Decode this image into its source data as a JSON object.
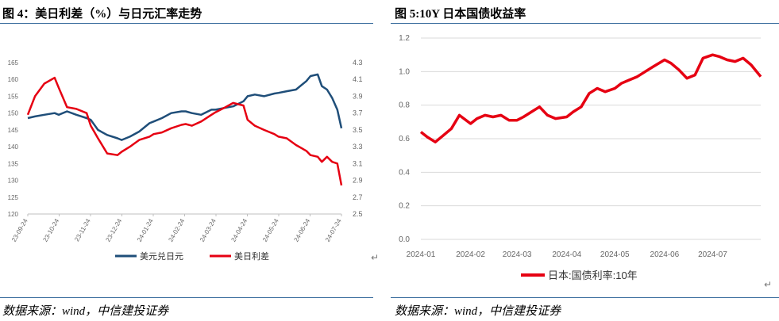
{
  "left": {
    "title": "图 4：美日利差（%）与日元汇率走势",
    "source": "数据来源：wind，中信建投证券",
    "chart_data": {
      "type": "line",
      "x_ticks": [
        "23-09-24",
        "23-10-24",
        "23-11-24",
        "23-12-24",
        "24-01-24",
        "24-02-24",
        "24-03-24",
        "24-04-24",
        "24-05-24",
        "24-06-24",
        "24-07-24"
      ],
      "y_left_ticks": [
        "165",
        "160",
        "155",
        "150",
        "145",
        "140",
        "135",
        "130",
        "125",
        "120"
      ],
      "y_right_ticks": [
        "4.3",
        "4.1",
        "3.9",
        "3.7",
        "3.5",
        "3.3",
        "3.1",
        "2.9",
        "2.7",
        "2.5"
      ],
      "ylim_left": [
        120,
        165
      ],
      "ylim_right": [
        2.5,
        4.3
      ],
      "series": [
        {
          "name": "美元兑日元",
          "axis": "left",
          "color": "#1f4e79",
          "x": [
            "2023-09-24",
            "2023-10-01",
            "2023-10-10",
            "2023-10-20",
            "2023-10-24",
            "2023-11-01",
            "2023-11-10",
            "2023-11-20",
            "2023-11-24",
            "2023-12-01",
            "2023-12-10",
            "2023-12-20",
            "2023-12-24",
            "2024-01-01",
            "2024-01-10",
            "2024-01-20",
            "2024-01-24",
            "2024-02-01",
            "2024-02-10",
            "2024-02-20",
            "2024-02-24",
            "2024-03-01",
            "2024-03-10",
            "2024-03-20",
            "2024-03-24",
            "2024-04-01",
            "2024-04-10",
            "2024-04-20",
            "2024-04-24",
            "2024-05-01",
            "2024-05-10",
            "2024-05-20",
            "2024-05-24",
            "2024-06-01",
            "2024-06-10",
            "2024-06-20",
            "2024-06-24",
            "2024-07-01",
            "2024-07-05",
            "2024-07-10",
            "2024-07-15",
            "2024-07-20",
            "2024-07-24"
          ],
          "values": [
            148.5,
            149,
            149.5,
            150,
            149.5,
            150.5,
            149.5,
            148.5,
            148,
            145,
            143.5,
            142.5,
            142,
            143,
            144.5,
            147,
            147.5,
            148.5,
            150,
            150.5,
            150.5,
            150,
            149.5,
            151,
            151,
            151.5,
            152,
            153.5,
            155,
            155.5,
            155,
            155.8,
            156,
            156.5,
            157,
            159.5,
            161,
            161.5,
            158,
            157,
            154.5,
            151,
            145.5
          ]
        },
        {
          "name": "美日利差",
          "axis": "right",
          "color": "#e60012",
          "x": [
            "2023-09-24",
            "2023-10-01",
            "2023-10-10",
            "2023-10-20",
            "2023-10-24",
            "2023-11-01",
            "2023-11-10",
            "2023-11-20",
            "2023-11-24",
            "2023-12-01",
            "2023-12-10",
            "2023-12-20",
            "2023-12-24",
            "2024-01-01",
            "2024-01-10",
            "2024-01-20",
            "2024-01-24",
            "2024-02-01",
            "2024-02-10",
            "2024-02-20",
            "2024-02-24",
            "2024-03-01",
            "2024-03-10",
            "2024-03-20",
            "2024-03-24",
            "2024-04-01",
            "2024-04-10",
            "2024-04-20",
            "2024-04-24",
            "2024-05-01",
            "2024-05-10",
            "2024-05-20",
            "2024-05-24",
            "2024-06-01",
            "2024-06-10",
            "2024-06-20",
            "2024-06-24",
            "2024-07-01",
            "2024-07-05",
            "2024-07-10",
            "2024-07-15",
            "2024-07-20",
            "2024-07-24"
          ],
          "values": [
            3.68,
            3.9,
            4.05,
            4.12,
            4.0,
            3.77,
            3.75,
            3.7,
            3.55,
            3.4,
            3.22,
            3.2,
            3.24,
            3.3,
            3.38,
            3.42,
            3.45,
            3.47,
            3.52,
            3.56,
            3.57,
            3.55,
            3.6,
            3.68,
            3.71,
            3.76,
            3.82,
            3.79,
            3.62,
            3.55,
            3.5,
            3.45,
            3.42,
            3.4,
            3.32,
            3.25,
            3.2,
            3.18,
            3.12,
            3.18,
            3.12,
            3.1,
            2.84
          ]
        }
      ],
      "legend": "bottom"
    }
  },
  "right": {
    "title": "图 5:10Y 日本国债收益率",
    "source": "数据来源：wind，中信建投证券",
    "chart_data": {
      "type": "line",
      "x_ticks": [
        "2024-01",
        "2024-02",
        "2024-03",
        "2024-04",
        "2024-05",
        "2024-06",
        "2024-07"
      ],
      "y_ticks": [
        "1.2",
        "1.0",
        "0.8",
        "0.6",
        "0.4",
        "0.2",
        "0.0"
      ],
      "ylim": [
        0,
        1.2
      ],
      "grid": true,
      "series": [
        {
          "name": "日本:国债利率:10年",
          "color": "#e60012",
          "x": [
            "2024-01-01",
            "2024-01-05",
            "2024-01-10",
            "2024-01-15",
            "2024-01-20",
            "2024-01-25",
            "2024-02-01",
            "2024-02-05",
            "2024-02-10",
            "2024-02-15",
            "2024-02-20",
            "2024-02-25",
            "2024-03-01",
            "2024-03-05",
            "2024-03-10",
            "2024-03-15",
            "2024-03-20",
            "2024-03-25",
            "2024-04-01",
            "2024-04-05",
            "2024-04-10",
            "2024-04-15",
            "2024-04-20",
            "2024-04-25",
            "2024-05-01",
            "2024-05-05",
            "2024-05-10",
            "2024-05-15",
            "2024-05-20",
            "2024-05-25",
            "2024-06-01",
            "2024-06-05",
            "2024-06-10",
            "2024-06-15",
            "2024-06-20",
            "2024-06-25",
            "2024-07-01",
            "2024-07-05",
            "2024-07-10",
            "2024-07-15",
            "2024-07-20",
            "2024-07-25",
            "2024-07-31"
          ],
          "values": [
            0.64,
            0.61,
            0.58,
            0.62,
            0.66,
            0.74,
            0.69,
            0.72,
            0.74,
            0.73,
            0.74,
            0.71,
            0.71,
            0.73,
            0.76,
            0.79,
            0.74,
            0.72,
            0.73,
            0.76,
            0.79,
            0.87,
            0.9,
            0.88,
            0.9,
            0.93,
            0.95,
            0.97,
            1.0,
            1.03,
            1.07,
            1.05,
            1.01,
            0.96,
            0.98,
            1.08,
            1.1,
            1.09,
            1.07,
            1.06,
            1.08,
            1.04,
            0.97
          ]
        }
      ],
      "legend": "bottom"
    }
  }
}
